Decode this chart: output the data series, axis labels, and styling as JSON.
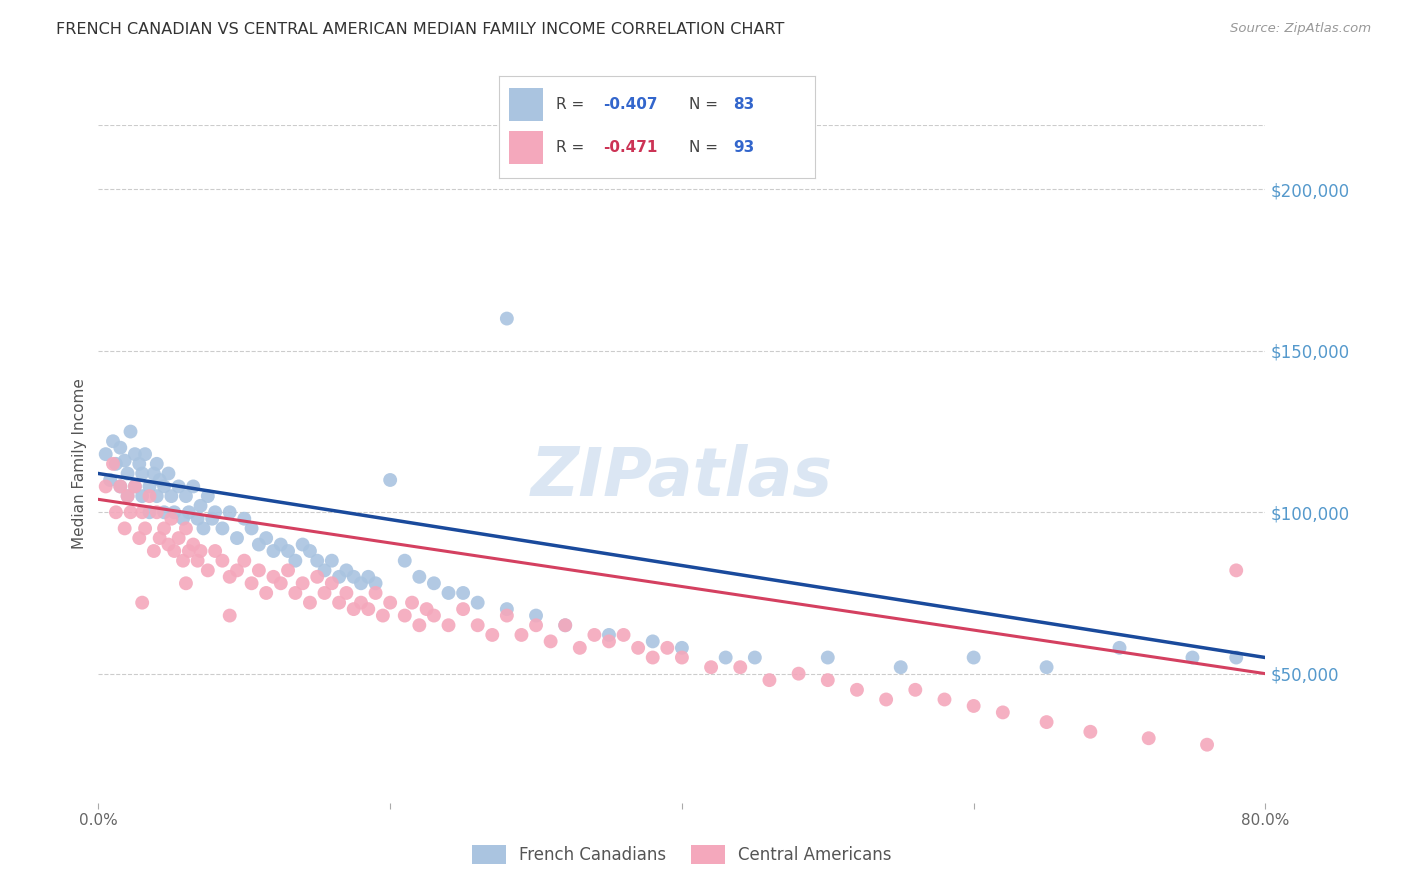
{
  "title": "FRENCH CANADIAN VS CENTRAL AMERICAN MEDIAN FAMILY INCOME CORRELATION CHART",
  "source": "Source: ZipAtlas.com",
  "ylabel": "Median Family Income",
  "watermark": "ZIPatlas",
  "blue_color": "#aac4e0",
  "pink_color": "#f4a8bc",
  "blue_line_color": "#1a4a9c",
  "pink_line_color": "#d44060",
  "r_value_color": "#3366cc",
  "r_value_pink_color": "#cc3355",
  "n_value_color": "#3366cc",
  "ytick_color": "#5599cc",
  "title_color": "#333333",
  "grid_color": "#cccccc",
  "background_color": "#ffffff",
  "xmin": 0.0,
  "xmax": 0.8,
  "ymin": 10000,
  "ymax": 220000,
  "yticks": [
    50000,
    100000,
    150000,
    200000
  ],
  "ytick_labels": [
    "$50,000",
    "$100,000",
    "$150,000",
    "$200,000"
  ],
  "blue_line_x0": 0.0,
  "blue_line_y0": 112000,
  "blue_line_x1": 0.8,
  "blue_line_y1": 55000,
  "pink_line_x0": 0.0,
  "pink_line_y0": 104000,
  "pink_line_x1": 0.8,
  "pink_line_y1": 50000,
  "blue_scatter_x": [
    0.005,
    0.008,
    0.01,
    0.012,
    0.015,
    0.015,
    0.018,
    0.02,
    0.02,
    0.022,
    0.025,
    0.025,
    0.028,
    0.03,
    0.03,
    0.032,
    0.035,
    0.035,
    0.038,
    0.04,
    0.04,
    0.042,
    0.045,
    0.045,
    0.048,
    0.05,
    0.052,
    0.055,
    0.058,
    0.06,
    0.062,
    0.065,
    0.068,
    0.07,
    0.072,
    0.075,
    0.078,
    0.08,
    0.085,
    0.09,
    0.095,
    0.1,
    0.105,
    0.11,
    0.115,
    0.12,
    0.125,
    0.13,
    0.135,
    0.14,
    0.145,
    0.15,
    0.155,
    0.16,
    0.165,
    0.17,
    0.175,
    0.18,
    0.185,
    0.19,
    0.2,
    0.21,
    0.22,
    0.23,
    0.24,
    0.25,
    0.26,
    0.28,
    0.3,
    0.32,
    0.35,
    0.38,
    0.4,
    0.43,
    0.45,
    0.5,
    0.55,
    0.6,
    0.65,
    0.7,
    0.75,
    0.78,
    0.28
  ],
  "blue_scatter_y": [
    118000,
    110000,
    122000,
    115000,
    120000,
    108000,
    116000,
    112000,
    105000,
    125000,
    118000,
    108000,
    115000,
    112000,
    105000,
    118000,
    108000,
    100000,
    112000,
    115000,
    105000,
    110000,
    108000,
    100000,
    112000,
    105000,
    100000,
    108000,
    98000,
    105000,
    100000,
    108000,
    98000,
    102000,
    95000,
    105000,
    98000,
    100000,
    95000,
    100000,
    92000,
    98000,
    95000,
    90000,
    92000,
    88000,
    90000,
    88000,
    85000,
    90000,
    88000,
    85000,
    82000,
    85000,
    80000,
    82000,
    80000,
    78000,
    80000,
    78000,
    110000,
    85000,
    80000,
    78000,
    75000,
    75000,
    72000,
    70000,
    68000,
    65000,
    62000,
    60000,
    58000,
    55000,
    55000,
    55000,
    52000,
    55000,
    52000,
    58000,
    55000,
    55000,
    160000
  ],
  "pink_scatter_x": [
    0.005,
    0.01,
    0.012,
    0.015,
    0.018,
    0.02,
    0.022,
    0.025,
    0.028,
    0.03,
    0.032,
    0.035,
    0.038,
    0.04,
    0.042,
    0.045,
    0.048,
    0.05,
    0.052,
    0.055,
    0.058,
    0.06,
    0.062,
    0.065,
    0.068,
    0.07,
    0.075,
    0.08,
    0.085,
    0.09,
    0.095,
    0.1,
    0.105,
    0.11,
    0.115,
    0.12,
    0.125,
    0.13,
    0.135,
    0.14,
    0.145,
    0.15,
    0.155,
    0.16,
    0.165,
    0.17,
    0.175,
    0.18,
    0.185,
    0.19,
    0.195,
    0.2,
    0.21,
    0.215,
    0.22,
    0.225,
    0.23,
    0.24,
    0.25,
    0.26,
    0.27,
    0.28,
    0.29,
    0.3,
    0.31,
    0.32,
    0.33,
    0.34,
    0.35,
    0.36,
    0.37,
    0.38,
    0.39,
    0.4,
    0.42,
    0.44,
    0.46,
    0.48,
    0.5,
    0.52,
    0.54,
    0.56,
    0.58,
    0.6,
    0.62,
    0.65,
    0.68,
    0.72,
    0.76,
    0.78,
    0.03,
    0.06,
    0.09
  ],
  "pink_scatter_y": [
    108000,
    115000,
    100000,
    108000,
    95000,
    105000,
    100000,
    108000,
    92000,
    100000,
    95000,
    105000,
    88000,
    100000,
    92000,
    95000,
    90000,
    98000,
    88000,
    92000,
    85000,
    95000,
    88000,
    90000,
    85000,
    88000,
    82000,
    88000,
    85000,
    80000,
    82000,
    85000,
    78000,
    82000,
    75000,
    80000,
    78000,
    82000,
    75000,
    78000,
    72000,
    80000,
    75000,
    78000,
    72000,
    75000,
    70000,
    72000,
    70000,
    75000,
    68000,
    72000,
    68000,
    72000,
    65000,
    70000,
    68000,
    65000,
    70000,
    65000,
    62000,
    68000,
    62000,
    65000,
    60000,
    65000,
    58000,
    62000,
    60000,
    62000,
    58000,
    55000,
    58000,
    55000,
    52000,
    52000,
    48000,
    50000,
    48000,
    45000,
    42000,
    45000,
    42000,
    40000,
    38000,
    35000,
    32000,
    30000,
    28000,
    82000,
    72000,
    78000,
    68000
  ]
}
